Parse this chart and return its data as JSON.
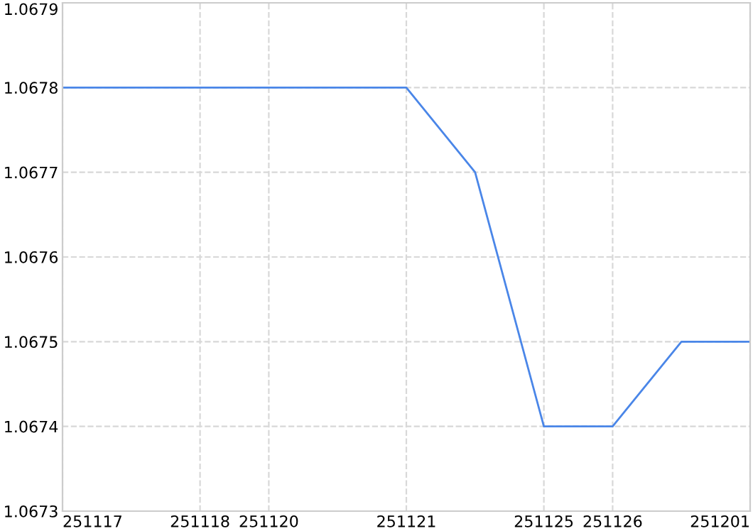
{
  "chart_data": {
    "type": "line",
    "categories": [
      "251117",
      null,
      "251118",
      "251120",
      null,
      "251121",
      null,
      "251125",
      "251126",
      null,
      "251201"
    ],
    "series": [
      {
        "color": "#4a86e8",
        "values": [
          1.0678,
          1.0678,
          1.0678,
          1.0678,
          1.0678,
          1.0678,
          1.0677,
          1.0674,
          1.0674,
          1.0675,
          1.0675
        ]
      }
    ],
    "ylim": [
      1.0673,
      1.0679
    ],
    "yticks": [
      1.0673,
      1.0674,
      1.0675,
      1.0676,
      1.0677,
      1.0678,
      1.0679
    ],
    "grid": true,
    "marker": "none",
    "line_style": "solid"
  }
}
